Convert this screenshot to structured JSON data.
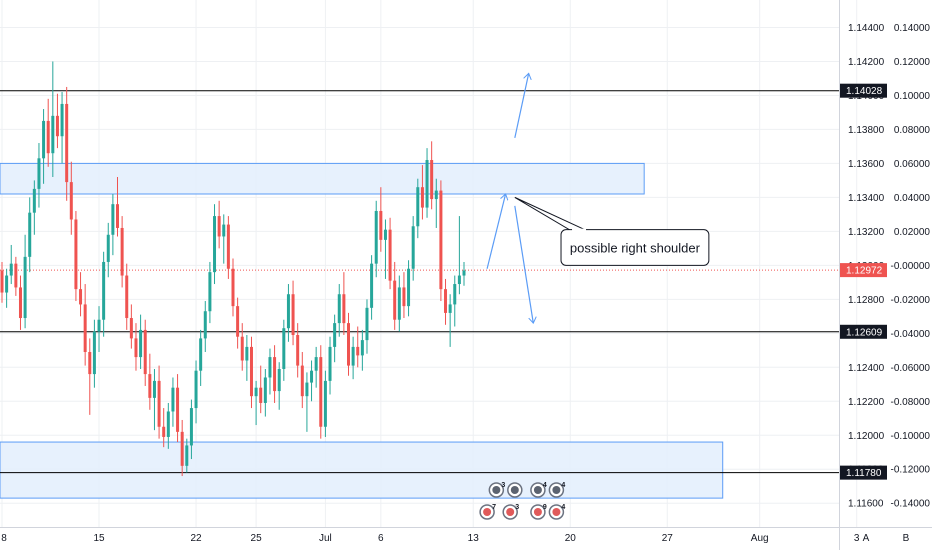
{
  "chart_data": {
    "type": "candlestick",
    "price_axis": {
      "ticks": [
        "1.14400",
        "1.14200",
        "1.14000",
        "1.13800",
        "1.13600",
        "1.13400",
        "1.13200",
        "1.13000",
        "1.12800",
        "1.12600",
        "1.12400",
        "1.12200",
        "1.12000",
        "1.11800",
        "1.11600"
      ],
      "range": [
        1.1146,
        1.1455
      ]
    },
    "secondary_axis": {
      "ticks": [
        "0.14000",
        "0.12000",
        "0.10000",
        "0.08000",
        "0.06000",
        "0.04000",
        "0.02000",
        "-0.00000",
        "-0.02000",
        "-0.04000",
        "-0.06000",
        "-0.08000",
        "-0.10000",
        "-0.12000",
        "-0.14000"
      ]
    },
    "x_ticks": [
      {
        "label": "8",
        "bar": 0
      },
      {
        "label": "15",
        "bar": 21
      },
      {
        "label": "22",
        "bar": 42
      },
      {
        "label": "25",
        "bar": 55
      },
      {
        "label": "Jul",
        "bar": 70
      },
      {
        "label": "6",
        "bar": 82
      },
      {
        "label": "13",
        "bar": 102
      },
      {
        "label": "20",
        "bar": 123
      },
      {
        "label": "27",
        "bar": 144
      },
      {
        "label": "Aug",
        "bar": 164
      },
      {
        "label": "3",
        "bar": 185
      }
    ],
    "horizontal_levels": [
      {
        "price": 1.14028,
        "label": "1.14028"
      },
      {
        "price": 1.12609,
        "label": "1.12609"
      },
      {
        "price": 1.1178,
        "label": "1.11780"
      }
    ],
    "current_price": {
      "price": 1.12972,
      "label": "1.12972",
      "color": "#ef5350"
    },
    "zones": [
      {
        "bar_from": -1,
        "bar_to": 139,
        "price_from": 1.1342,
        "price_to": 1.136
      },
      {
        "bar_from": -1,
        "bar_to": 156,
        "price_from": 1.1163,
        "price_to": 1.1196
      }
    ],
    "projection_arrows": [
      {
        "from": [
          105,
          1.1298
        ],
        "to": [
          109,
          1.1342
        ]
      },
      {
        "from": [
          111,
          1.1375
        ],
        "to": [
          114,
          1.1413
        ]
      },
      {
        "from": [
          111,
          1.1335
        ],
        "to": [
          115,
          1.1266
        ]
      }
    ],
    "callout": {
      "text": "possible right shoulder",
      "anchor": [
        111,
        1.134
      ],
      "box_bar_from": 121,
      "box_bar_to": 153,
      "box_price_top": 1.1321,
      "box_price_bottom": 1.13
    },
    "event_markers": [
      {
        "bar": 107,
        "row": 1,
        "count": "3"
      },
      {
        "bar": 111,
        "row": 1,
        "count": ""
      },
      {
        "bar": 116,
        "row": 1,
        "count": "4"
      },
      {
        "bar": 120,
        "row": 1,
        "count": "4"
      },
      {
        "bar": 105,
        "row": 2,
        "count": "7"
      },
      {
        "bar": 110,
        "row": 2,
        "count": "3"
      },
      {
        "bar": 116,
        "row": 2,
        "count": "9"
      },
      {
        "bar": 120,
        "row": 2,
        "count": "4"
      }
    ],
    "colors": {
      "up": "#26a69a",
      "down": "#ef5350",
      "zone_fill": "#e3effd",
      "zone_stroke": "#5b9cf6",
      "level": "#000000",
      "arrow": "#5b9cf6",
      "grid": "#eef0f3"
    },
    "candles": [
      [
        1.1297,
        1.1302,
        1.1278,
        1.1284
      ],
      [
        1.1284,
        1.1298,
        1.1275,
        1.1294
      ],
      [
        1.1294,
        1.1312,
        1.1289,
        1.1301
      ],
      [
        1.1301,
        1.1305,
        1.1282,
        1.1287
      ],
      [
        1.1287,
        1.1294,
        1.1262,
        1.1269
      ],
      [
        1.1269,
        1.1318,
        1.1263,
        1.1305
      ],
      [
        1.1305,
        1.134,
        1.1296,
        1.1331
      ],
      [
        1.1331,
        1.135,
        1.1318,
        1.1345
      ],
      [
        1.1345,
        1.1372,
        1.1334,
        1.1363
      ],
      [
        1.1363,
        1.1392,
        1.1348,
        1.1385
      ],
      [
        1.1385,
        1.1398,
        1.1358,
        1.1366
      ],
      [
        1.1366,
        1.142,
        1.1352,
        1.1388
      ],
      [
        1.1388,
        1.1401,
        1.1369,
        1.1376
      ],
      [
        1.1376,
        1.1402,
        1.136,
        1.1395
      ],
      [
        1.1395,
        1.1405,
        1.1338,
        1.1349
      ],
      [
        1.1349,
        1.1361,
        1.1318,
        1.1327
      ],
      [
        1.1327,
        1.1332,
        1.1279,
        1.1286
      ],
      [
        1.1286,
        1.1296,
        1.127,
        1.1277
      ],
      [
        1.1277,
        1.1289,
        1.1241,
        1.1249
      ],
      [
        1.1249,
        1.1257,
        1.1212,
        1.1236
      ],
      [
        1.1236,
        1.1268,
        1.1228,
        1.1261
      ],
      [
        1.1261,
        1.1276,
        1.1249,
        1.1268
      ],
      [
        1.1268,
        1.1308,
        1.1258,
        1.1302
      ],
      [
        1.1302,
        1.1325,
        1.1293,
        1.1318
      ],
      [
        1.1318,
        1.1342,
        1.1306,
        1.1336
      ],
      [
        1.1336,
        1.1352,
        1.1317,
        1.1322
      ],
      [
        1.1322,
        1.1329,
        1.1287,
        1.1294
      ],
      [
        1.1294,
        1.1301,
        1.1262,
        1.1269
      ],
      [
        1.1269,
        1.1277,
        1.1251,
        1.1257
      ],
      [
        1.1257,
        1.1266,
        1.1238,
        1.1246
      ],
      [
        1.1246,
        1.1271,
        1.1239,
        1.1262
      ],
      [
        1.1262,
        1.1268,
        1.1229,
        1.1236
      ],
      [
        1.1236,
        1.1248,
        1.1215,
        1.1222
      ],
      [
        1.1222,
        1.1239,
        1.1203,
        1.1232
      ],
      [
        1.1232,
        1.1241,
        1.1198,
        1.1205
      ],
      [
        1.1205,
        1.1216,
        1.1193,
        1.1199
      ],
      [
        1.1199,
        1.1219,
        1.1192,
        1.1214
      ],
      [
        1.1214,
        1.1234,
        1.1205,
        1.1228
      ],
      [
        1.1228,
        1.1236,
        1.1196,
        1.1202
      ],
      [
        1.1202,
        1.1209,
        1.1176,
        1.1182
      ],
      [
        1.1182,
        1.1198,
        1.1178,
        1.1194
      ],
      [
        1.1194,
        1.1221,
        1.1186,
        1.1216
      ],
      [
        1.1216,
        1.1244,
        1.1207,
        1.1238
      ],
      [
        1.1238,
        1.1262,
        1.1229,
        1.1257
      ],
      [
        1.1257,
        1.1279,
        1.1249,
        1.1273
      ],
      [
        1.1273,
        1.1302,
        1.1266,
        1.1296
      ],
      [
        1.1296,
        1.1336,
        1.1289,
        1.1329
      ],
      [
        1.1329,
        1.1338,
        1.131,
        1.1317
      ],
      [
        1.1317,
        1.133,
        1.1301,
        1.1324
      ],
      [
        1.1324,
        1.1329,
        1.1292,
        1.1298
      ],
      [
        1.1298,
        1.1304,
        1.127,
        1.1276
      ],
      [
        1.1276,
        1.1281,
        1.1251,
        1.1258
      ],
      [
        1.1258,
        1.1266,
        1.1238,
        1.1244
      ],
      [
        1.1244,
        1.1259,
        1.1232,
        1.1252
      ],
      [
        1.1252,
        1.1258,
        1.1216,
        1.1223
      ],
      [
        1.1223,
        1.1232,
        1.1206,
        1.1228
      ],
      [
        1.1228,
        1.1241,
        1.1213,
        1.1219
      ],
      [
        1.1219,
        1.1239,
        1.1211,
        1.1234
      ],
      [
        1.1234,
        1.1251,
        1.1224,
        1.1246
      ],
      [
        1.1246,
        1.1253,
        1.1219,
        1.1226
      ],
      [
        1.1226,
        1.1243,
        1.1215,
        1.1239
      ],
      [
        1.1239,
        1.1268,
        1.1232,
        1.1263
      ],
      [
        1.1263,
        1.1289,
        1.1255,
        1.1283
      ],
      [
        1.1283,
        1.1291,
        1.1253,
        1.1259
      ],
      [
        1.1259,
        1.1266,
        1.1234,
        1.1241
      ],
      [
        1.1241,
        1.1249,
        1.1216,
        1.1223
      ],
      [
        1.1223,
        1.1237,
        1.1202,
        1.1231
      ],
      [
        1.1231,
        1.1244,
        1.122,
        1.1238
      ],
      [
        1.1238,
        1.1252,
        1.1228,
        1.1246
      ],
      [
        1.1246,
        1.1253,
        1.1198,
        1.1205
      ],
      [
        1.1205,
        1.1238,
        1.1199,
        1.1232
      ],
      [
        1.1232,
        1.1258,
        1.1224,
        1.1252
      ],
      [
        1.1252,
        1.1271,
        1.1243,
        1.1266
      ],
      [
        1.1266,
        1.1289,
        1.1258,
        1.1283
      ],
      [
        1.1283,
        1.1296,
        1.1259,
        1.1266
      ],
      [
        1.1266,
        1.1272,
        1.1235,
        1.1241
      ],
      [
        1.1241,
        1.1258,
        1.1233,
        1.1252
      ],
      [
        1.1252,
        1.1264,
        1.124,
        1.1247
      ],
      [
        1.1247,
        1.1262,
        1.1238,
        1.1256
      ],
      [
        1.1256,
        1.128,
        1.1248,
        1.1275
      ],
      [
        1.1275,
        1.1306,
        1.1268,
        1.1301
      ],
      [
        1.1301,
        1.1338,
        1.1293,
        1.1332
      ],
      [
        1.1332,
        1.1346,
        1.1308,
        1.1315
      ],
      [
        1.1315,
        1.1327,
        1.1292,
        1.1321
      ],
      [
        1.1321,
        1.1328,
        1.1286,
        1.1291
      ],
      [
        1.1291,
        1.1302,
        1.1262,
        1.1268
      ],
      [
        1.1268,
        1.1294,
        1.1261,
        1.1287
      ],
      [
        1.1287,
        1.1296,
        1.1269,
        1.1276
      ],
      [
        1.1276,
        1.1303,
        1.127,
        1.1298
      ],
      [
        1.1298,
        1.1329,
        1.1291,
        1.1323
      ],
      [
        1.1323,
        1.1351,
        1.1316,
        1.1346
      ],
      [
        1.1346,
        1.1359,
        1.1327,
        1.1334
      ],
      [
        1.1334,
        1.1369,
        1.1328,
        1.1362
      ],
      [
        1.1362,
        1.1373,
        1.1333,
        1.1339
      ],
      [
        1.1339,
        1.1351,
        1.1322,
        1.1344
      ],
      [
        1.1344,
        1.135,
        1.1279,
        1.1286
      ],
      [
        1.1286,
        1.1292,
        1.1265,
        1.1272
      ],
      [
        1.1272,
        1.1283,
        1.1252,
        1.1277
      ],
      [
        1.1277,
        1.1294,
        1.1264,
        1.1289
      ],
      [
        1.1289,
        1.1329,
        1.1283,
        1.1294
      ],
      [
        1.1294,
        1.1302,
        1.1288,
        1.1297
      ]
    ]
  },
  "callout_text": "possible right shoulder",
  "buttons": {
    "auto": "A",
    "toggle": "B"
  }
}
